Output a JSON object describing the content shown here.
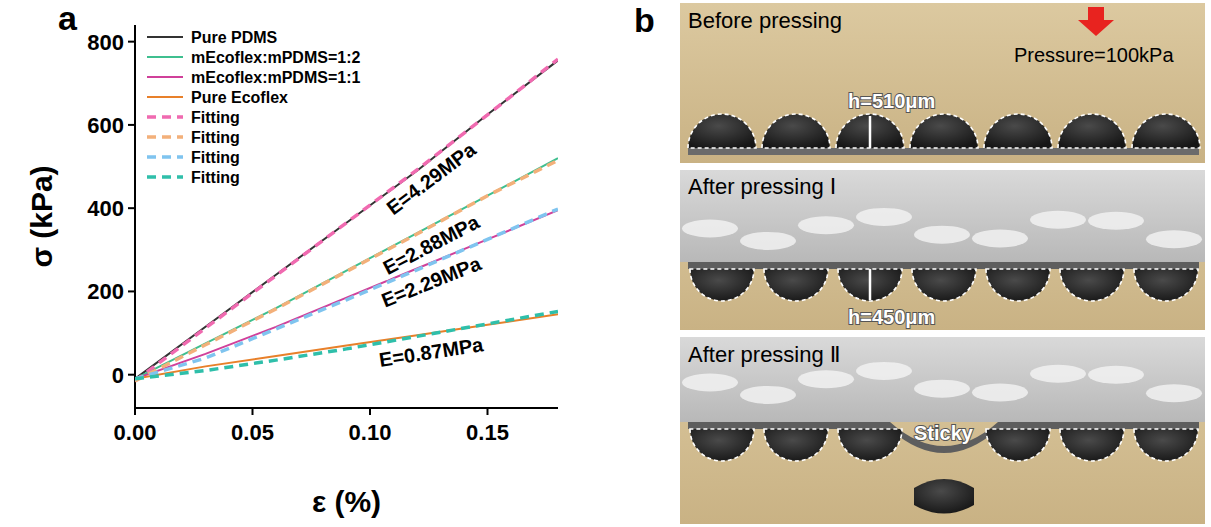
{
  "panel_labels": [
    "a",
    "b"
  ],
  "chart_data": {
    "type": "line",
    "x_label": "ε (%)",
    "y_label": "σ (kPa)",
    "x": [
      0,
      0.03,
      0.06,
      0.09,
      0.12,
      0.15,
      0.18
    ],
    "xlim": [
      0,
      0.18
    ],
    "ylim": [
      -80,
      840
    ],
    "xticks": [
      {
        "value": 0,
        "label": "0.00"
      },
      {
        "value": 0.05,
        "label": "0.05"
      },
      {
        "value": 0.1,
        "label": "0.10"
      },
      {
        "value": 0.15,
        "label": "0.15"
      }
    ],
    "yticks": [
      0,
      200,
      400,
      600,
      800
    ],
    "legend": "upper left",
    "grid": false,
    "series": [
      {
        "name": "Pure PDMS",
        "color": "#333333",
        "line_style": "solid",
        "values": [
          -10,
          115,
          240,
          365,
          490,
          625,
          755
        ]
      },
      {
        "name": "mEcoflex:mPDMS=1:2",
        "color": "#3fbf8f",
        "line_style": "solid",
        "values": [
          -10,
          75,
          160,
          250,
          340,
          430,
          520
        ]
      },
      {
        "name": "mEcoflex:mPDMS=1:1",
        "color": "#d0409a",
        "line_style": "solid",
        "values": [
          -10,
          50,
          115,
          185,
          255,
          325,
          395
        ]
      },
      {
        "name": "Pure Ecoflex",
        "color": "#e8802a",
        "line_style": "solid",
        "values": [
          -10,
          20,
          45,
          70,
          95,
          120,
          145
        ]
      },
      {
        "name": "Fitting",
        "color": "#f06ab0",
        "line_style": "dashed",
        "values": [
          -15,
          112,
          238,
          365,
          492,
          624,
          758
        ]
      },
      {
        "name": "Fitting",
        "color": "#f3b07a",
        "line_style": "dashed",
        "values": [
          -15,
          72,
          158,
          248,
          338,
          430,
          515
        ]
      },
      {
        "name": "Fitting",
        "color": "#7fc4ef",
        "line_style": "dashed",
        "values": [
          -10,
          40,
          110,
          180,
          252,
          325,
          398
        ]
      },
      {
        "name": "Fitting",
        "color": "#2fbfaa",
        "line_style": "dashed",
        "values": [
          -10,
          10,
          35,
          62,
          92,
          122,
          152
        ]
      }
    ],
    "annotations": [
      "E=4.29MPa",
      "E=2.88MPa",
      "E=2.29MPa",
      "E=0.87MPa"
    ]
  },
  "photo": {
    "panels": [
      {
        "title": "Before pressing",
        "annotations": [
          "Pressure=100kPa",
          "h=510μm"
        ]
      },
      {
        "title": "After pressing Ⅰ",
        "annotations": [
          "h=450μm"
        ]
      },
      {
        "title": "After pressing Ⅱ",
        "annotations": [
          "Sticky"
        ]
      }
    ]
  }
}
